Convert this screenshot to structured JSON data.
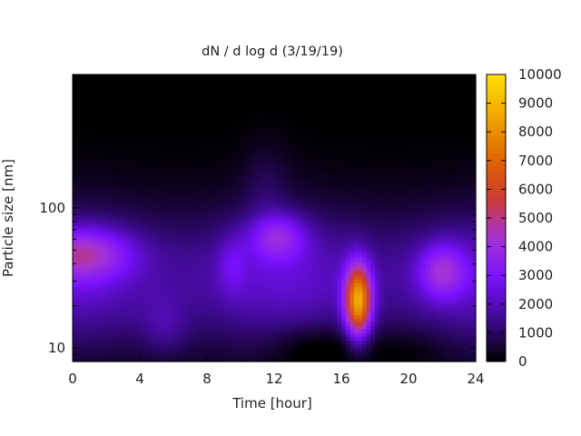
{
  "chart_data": {
    "type": "heatmap",
    "title": "dN / d log d (3/19/19)",
    "xlabel": "Time [hour]",
    "ylabel": "Particle size [nm]",
    "xlim": [
      0,
      24
    ],
    "ylim": [
      8,
      900
    ],
    "yscale": "log",
    "x_ticks": [
      "0",
      "4",
      "8",
      "12",
      "16",
      "20",
      "24"
    ],
    "y_ticks": [
      "10",
      "100"
    ],
    "colorbar": {
      "range": [
        0,
        10000
      ],
      "ticks": [
        "0",
        "1000",
        "2000",
        "3000",
        "4000",
        "5000",
        "6000",
        "7000",
        "8000",
        "9000",
        "10000"
      ],
      "colormap": [
        "#000000",
        "#3b0a8a",
        "#7a10ff",
        "#a533d8",
        "#cf3a2c",
        "#e06a00",
        "#f0a800",
        "#ffe000"
      ]
    },
    "features": [
      {
        "time_hr": 0.5,
        "size_nm": 48,
        "value": 5000
      },
      {
        "time_hr": 12.2,
        "size_nm": 62,
        "value": 4300
      },
      {
        "time_hr": 17.0,
        "size_nm": 22,
        "value": 9000
      },
      {
        "time_hr": 22.0,
        "size_nm": 35,
        "value": 4500
      },
      {
        "time_hr": 9.5,
        "size_nm": 40,
        "value": 3600
      },
      {
        "time_hr": 5.5,
        "size_nm": 15,
        "value": 1500
      },
      {
        "time_hr": 14.5,
        "size_nm": 13,
        "value": 800
      }
    ]
  }
}
